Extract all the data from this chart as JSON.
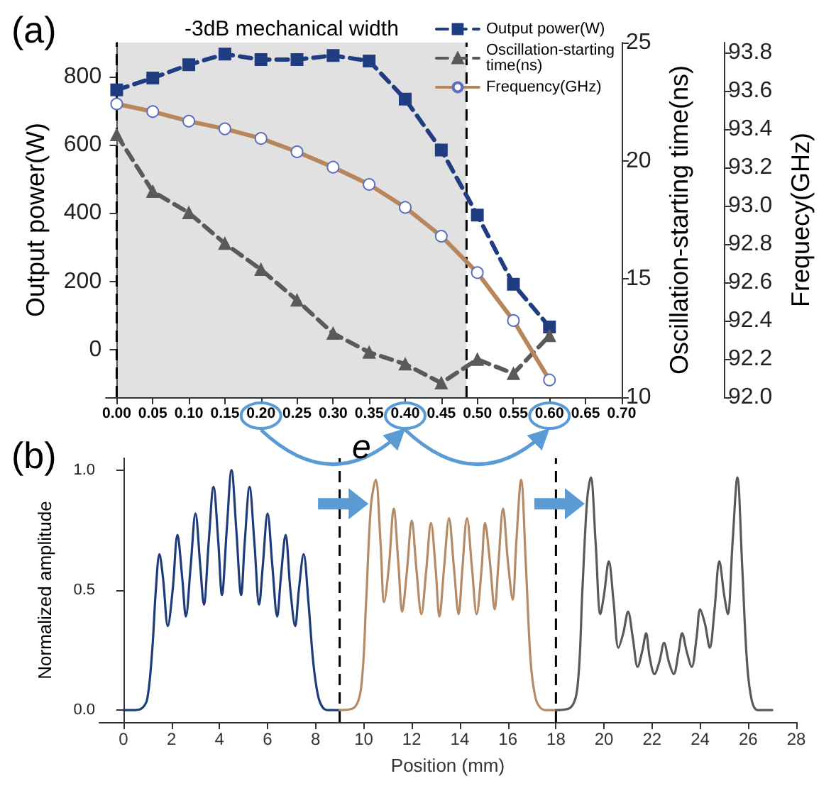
{
  "chart_data": [
    {
      "type": "line",
      "annotations": [
        "(a)",
        "e"
      ],
      "ylabel": "Output power(W)",
      "y2label": "Oscillation-starting time(ns)",
      "y3label": "Frequecy(GHz)",
      "x": [
        0,
        0.05,
        0.1,
        0.15,
        0.2,
        0.25,
        0.3,
        0.35,
        0.4,
        0.45,
        0.5,
        0.55,
        0.6
      ],
      "series": [
        {
          "name": "Output power(W)",
          "color": "#1f3d80",
          "marker": "square",
          "line_style": "dashed",
          "values": [
            761,
            796,
            835,
            866,
            850,
            850,
            862,
            846,
            734,
            585,
            394,
            191,
            66
          ]
        },
        {
          "name": "Oscillation-starting time(ns)",
          "color": "#5a5a5a",
          "marker": "triangle",
          "line_style": "dashed",
          "axis": "y2",
          "values": [
            21.1,
            18.7,
            17.8,
            16.5,
            15.4,
            14.1,
            12.7,
            11.9,
            11.4,
            10.6,
            11.6,
            11.0,
            12.6
          ]
        },
        {
          "name": "Frequency(GHz)",
          "color": "#b8865c",
          "marker": "circle",
          "line_style": "solid",
          "axis": "y3",
          "values": [
            93.53,
            93.49,
            93.44,
            93.4,
            93.35,
            93.28,
            93.2,
            93.11,
            92.99,
            92.84,
            92.65,
            92.4,
            92.09
          ]
        }
      ],
      "xlim": [
        -0.015,
        0.7
      ],
      "xticks": [
        {
          "value": 0,
          "label": "0.00"
        },
        {
          "value": 0.05,
          "label": "0.05"
        },
        {
          "value": 0.1,
          "label": "0.10"
        },
        {
          "value": 0.15,
          "label": "0.15"
        },
        {
          "value": 0.2,
          "label": "0.20"
        },
        {
          "value": 0.25,
          "label": "0.25"
        },
        {
          "value": 0.3,
          "label": "0.30"
        },
        {
          "value": 0.35,
          "label": "0.35"
        },
        {
          "value": 0.4,
          "label": "0.40"
        },
        {
          "value": 0.45,
          "label": "0.45"
        },
        {
          "value": 0.5,
          "label": "0.50"
        },
        {
          "value": 0.55,
          "label": "0.55"
        },
        {
          "value": 0.6,
          "label": "0.60"
        },
        {
          "value": 0.65,
          "label": "0.65"
        },
        {
          "value": 0.7,
          "label": "0.70"
        }
      ],
      "ylim": [
        -140,
        900
      ],
      "yticks": [
        0,
        200,
        400,
        600,
        800
      ],
      "y2lim": [
        10,
        25
      ],
      "y2ticks": [
        10,
        15,
        20,
        25
      ],
      "y3lim": [
        92.0,
        93.85
      ],
      "y3ticks": [
        {
          "value": 92.0,
          "label": "92.0"
        },
        {
          "value": 92.2,
          "label": "92.2"
        },
        {
          "value": 92.4,
          "label": "92.4"
        },
        {
          "value": 92.6,
          "label": "92.6"
        },
        {
          "value": 92.8,
          "label": "92.8"
        },
        {
          "value": 93.0,
          "label": "93.0"
        },
        {
          "value": 93.2,
          "label": "93.2"
        },
        {
          "value": 93.4,
          "label": "93.4"
        },
        {
          "value": 93.6,
          "label": "93.6"
        },
        {
          "value": 93.8,
          "label": "93.8"
        }
      ],
      "ref_lines": [
        {
          "axis": "x",
          "value": 0,
          "color": "#000000",
          "line_style": "dashed"
        },
        {
          "axis": "x",
          "value": 0.485,
          "color": "#000000",
          "line_style": "dashed"
        }
      ],
      "bands": [
        {
          "axis": "x",
          "from": 0,
          "to": 0.485,
          "label": "-3dB mechanical width",
          "color": "#9a9a9a"
        }
      ],
      "legend": "top right",
      "grid": false
    },
    {
      "type": "line",
      "annotations": [
        "(b)"
      ],
      "xlabel": "Position (mm)",
      "ylabel": "Normalized amplitude",
      "marker": "none",
      "line_style": "solid",
      "series": [
        {
          "color": "#1f3c7a",
          "x": [
            0,
            0.5,
            0.8,
            1.0,
            1.2,
            1.35,
            1.5,
            1.65,
            1.85,
            2.05,
            2.25,
            2.45,
            2.6,
            2.8,
            3.0,
            3.2,
            3.35,
            3.55,
            3.75,
            3.95,
            4.1,
            4.3,
            4.5,
            4.7,
            4.9,
            5.05,
            5.25,
            5.45,
            5.65,
            5.8,
            6.0,
            6.2,
            6.4,
            6.55,
            6.75,
            6.95,
            7.15,
            7.3,
            7.5,
            7.7,
            7.9,
            8.1,
            8.3,
            8.5,
            9.0
          ],
          "values": [
            0,
            0,
            0.01,
            0.05,
            0.25,
            0.5,
            0.65,
            0.55,
            0.35,
            0.5,
            0.73,
            0.55,
            0.39,
            0.6,
            0.82,
            0.6,
            0.44,
            0.7,
            0.93,
            0.7,
            0.48,
            0.75,
            1.0,
            0.75,
            0.48,
            0.7,
            0.93,
            0.7,
            0.44,
            0.6,
            0.82,
            0.6,
            0.39,
            0.55,
            0.73,
            0.5,
            0.35,
            0.5,
            0.65,
            0.45,
            0.2,
            0.06,
            0.01,
            0,
            0
          ]
        },
        {
          "color": "#b58a66",
          "x": [
            9,
            9.6,
            9.9,
            10.1,
            10.3,
            10.5,
            10.7,
            10.85,
            11.05,
            11.25,
            11.45,
            11.6,
            11.8,
            12.0,
            12.2,
            12.4,
            12.6,
            12.8,
            13.0,
            13.15,
            13.35,
            13.55,
            13.75,
            13.95,
            14.1,
            14.3,
            14.5,
            14.7,
            14.9,
            15.05,
            15.25,
            15.45,
            15.6,
            15.8,
            16.0,
            16.2,
            16.35,
            16.55,
            16.75,
            16.95,
            17.15,
            17.35,
            17.6,
            18.0
          ],
          "values": [
            0,
            0.01,
            0.1,
            0.45,
            0.85,
            0.96,
            0.7,
            0.45,
            0.6,
            0.84,
            0.6,
            0.41,
            0.58,
            0.79,
            0.58,
            0.4,
            0.58,
            0.78,
            0.58,
            0.39,
            0.6,
            0.8,
            0.6,
            0.4,
            0.58,
            0.8,
            0.6,
            0.4,
            0.58,
            0.78,
            0.62,
            0.42,
            0.6,
            0.84,
            0.62,
            0.46,
            0.7,
            0.96,
            0.6,
            0.2,
            0.05,
            0.01,
            0,
            0
          ]
        },
        {
          "color": "#595959",
          "x": [
            18,
            18.6,
            18.9,
            19.1,
            19.3,
            19.45,
            19.65,
            19.85,
            20.0,
            20.2,
            20.4,
            20.6,
            20.8,
            21.0,
            21.2,
            21.4,
            21.6,
            21.75,
            21.9,
            22.1,
            22.3,
            22.5,
            22.7,
            22.9,
            23.1,
            23.25,
            23.45,
            23.65,
            23.85,
            24.0,
            24.2,
            24.4,
            24.6,
            24.8,
            25.0,
            25.15,
            25.35,
            25.55,
            25.75,
            25.95,
            26.15,
            26.4,
            27.0
          ],
          "values": [
            0,
            0.01,
            0.1,
            0.5,
            0.88,
            0.97,
            0.7,
            0.4,
            0.48,
            0.62,
            0.45,
            0.26,
            0.32,
            0.41,
            0.3,
            0.18,
            0.25,
            0.32,
            0.22,
            0.15,
            0.2,
            0.28,
            0.2,
            0.15,
            0.24,
            0.32,
            0.24,
            0.18,
            0.3,
            0.42,
            0.36,
            0.26,
            0.42,
            0.62,
            0.48,
            0.4,
            0.7,
            0.97,
            0.6,
            0.2,
            0.04,
            0,
            0
          ]
        }
      ],
      "xlim": [
        -1,
        28
      ],
      "xticks": [
        0,
        2,
        4,
        6,
        8,
        10,
        12,
        14,
        16,
        18,
        20,
        22,
        24,
        26,
        28
      ],
      "ylim": [
        -0.05,
        1.05
      ],
      "yticks": [
        {
          "value": 0,
          "label": "0.0"
        },
        {
          "value": 0.5,
          "label": "0.5"
        },
        {
          "value": 1.0,
          "label": "1.0"
        }
      ],
      "ref_lines": [
        {
          "axis": "x",
          "value": 9,
          "color": "#000000",
          "line_style": "dashed"
        },
        {
          "axis": "x",
          "value": 18,
          "color": "#000000",
          "line_style": "dashed"
        }
      ],
      "grid": false
    }
  ]
}
